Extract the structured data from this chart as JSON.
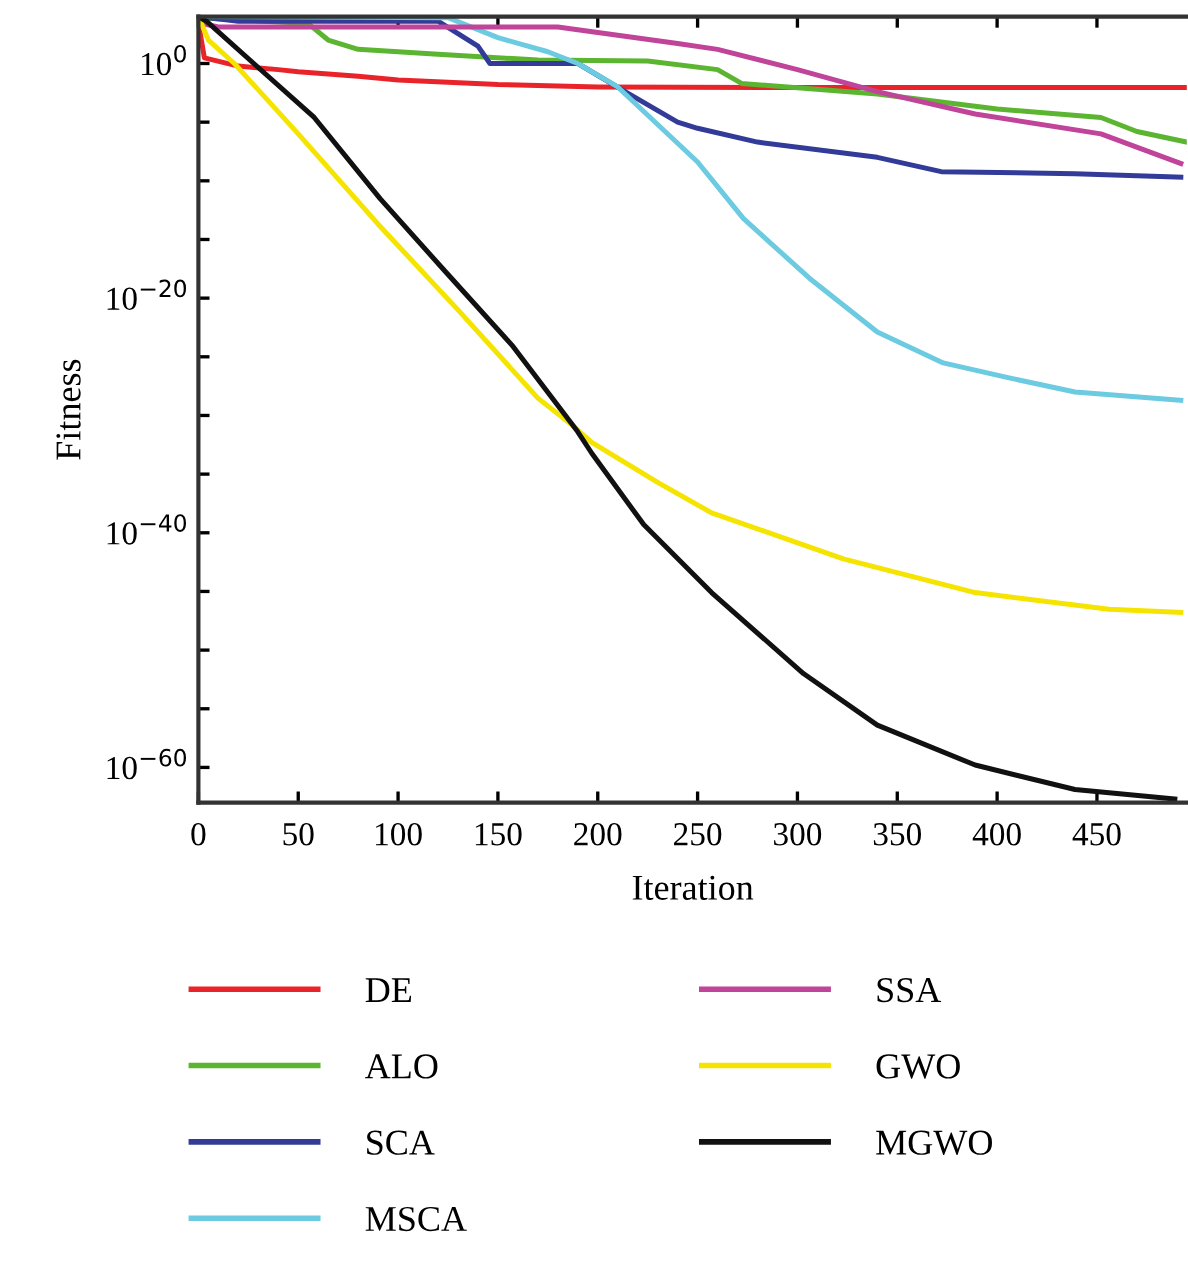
{
  "chart_data": {
    "type": "line",
    "xlabel": "Iteration",
    "ylabel": "Fitness",
    "log": "y",
    "grid": false,
    "legend": "bottom",
    "line_style": "solid",
    "marker": "none",
    "xlim": [
      0,
      495
    ],
    "xticks": [
      0,
      50,
      100,
      150,
      200,
      250,
      300,
      350,
      400,
      450
    ],
    "ylim": [
      1e-63,
      10000.0
    ],
    "yticks": [
      {
        "value": 1,
        "label": "10$^{0}$"
      },
      {
        "value": 1e-05,
        "label": null
      },
      {
        "value": 1e-10,
        "label": null
      },
      {
        "value": 1e-15,
        "label": null
      },
      {
        "value": 1e-20,
        "label": "10$^{−20}$"
      },
      {
        "value": 1e-25,
        "label": null
      },
      {
        "value": 1e-30,
        "label": null
      },
      {
        "value": 1e-35,
        "label": null
      },
      {
        "value": 1e-40,
        "label": "10$^{−40}$"
      },
      {
        "value": 1e-45,
        "label": null
      },
      {
        "value": 1e-50,
        "label": null
      },
      {
        "value": 1e-55,
        "label": null
      },
      {
        "value": 1e-60,
        "label": "10$^{−60}$"
      }
    ],
    "series": [
      {
        "name": "DE",
        "color": "#e8242a",
        "x": [
          0,
          3,
          20,
          40,
          50,
          80,
          100,
          150,
          200,
          300,
          495
        ],
        "values": [
          3000.0,
          3,
          0.6,
          0.3,
          0.2,
          0.08,
          0.04,
          0.016,
          0.01,
          0.009,
          0.009
        ]
      },
      {
        "name": "ALO",
        "color": "#5cb531",
        "x": [
          0,
          55,
          65,
          80,
          120,
          170,
          225,
          260,
          272,
          340,
          400,
          452,
          470,
          495
        ],
        "values": [
          8000.0,
          2500.0,
          100,
          16,
          6,
          2,
          1.6,
          0.3,
          0.02,
          0.0025,
          0.00013,
          2.5e-05,
          1.6e-06,
          2e-07
        ]
      },
      {
        "name": "SCA",
        "color": "#323c98",
        "x": [
          0,
          20,
          120,
          140,
          146,
          190,
          215,
          240,
          250,
          280,
          340,
          372,
          439,
          492
        ],
        "values": [
          10000.0,
          4000.0,
          4000.0,
          30,
          1,
          1,
          0.003,
          1e-05,
          3e-06,
          2e-07,
          1e-08,
          6e-10,
          4e-10,
          2e-10
        ]
      },
      {
        "name": "MSCA",
        "color": "#6ccbe0",
        "x": [
          0,
          125,
          150,
          175,
          190,
          210,
          240,
          250,
          273,
          306,
          340,
          373,
          406,
          439,
          492
        ],
        "values": [
          10000.0,
          8000.0,
          160,
          10,
          1,
          0.01,
          1.6e-07,
          4e-09,
          6e-14,
          5e-19,
          1.3e-23,
          3e-26,
          1.6e-27,
          1e-28,
          2e-29
        ]
      },
      {
        "name": "SSA",
        "color": "#c0449a",
        "x": [
          0,
          10,
          180,
          240,
          260,
          300,
          340,
          389,
          452,
          492
        ],
        "values": [
          3000.0,
          1300.0,
          1300.0,
          50,
          16,
          0.3,
          0.004,
          5e-05,
          1e-06,
          3e-09
        ]
      },
      {
        "name": "GWO",
        "color": "#f5e400",
        "x": [
          0,
          5,
          18,
          50,
          90,
          130,
          170,
          187,
          197,
          230,
          257,
          323,
          389,
          456,
          492
        ],
        "values": [
          10000.0,
          100,
          1,
          1e-06,
          2e-14,
          1e-21,
          3e-29,
          1.6e-31,
          5e-33,
          2e-36,
          5e-39,
          6e-43,
          8e-46,
          3e-47,
          1.6e-47
        ]
      },
      {
        "name": "MGWO",
        "color": "#111111",
        "x": [
          0,
          4,
          58,
          91,
          124,
          157,
          190,
          197,
          223,
          257,
          303,
          340,
          389,
          439,
          489
        ],
        "values": [
          10000.0,
          4000.0,
          2.5e-05,
          3e-12,
          1.6e-18,
          1e-24,
          4e-32,
          6e-34,
          5e-40,
          8e-46,
          1e-52,
          4e-57,
          1.6e-60,
          1.3e-62,
          2e-63
        ]
      }
    ]
  }
}
